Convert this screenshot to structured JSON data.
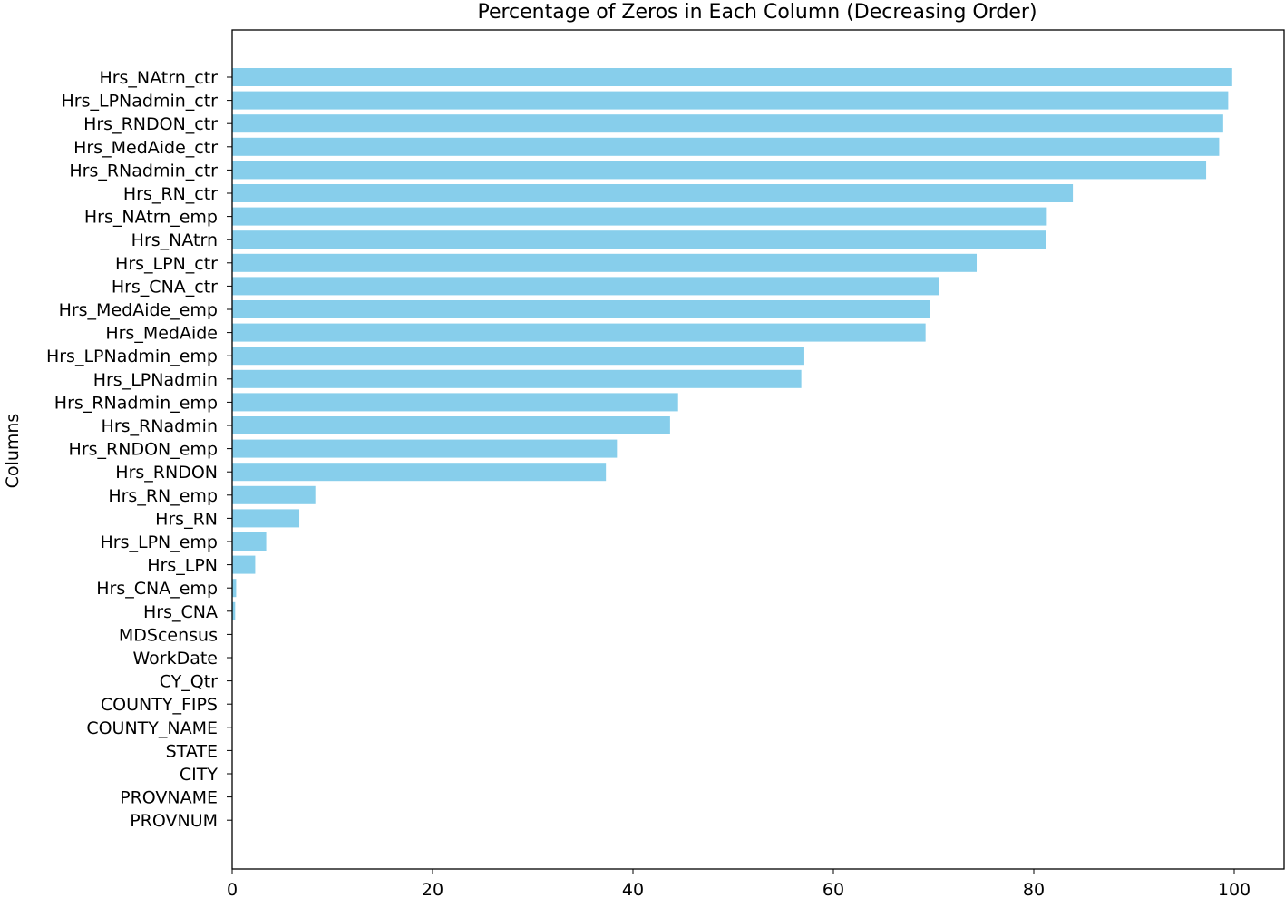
{
  "chart_data": {
    "type": "bar",
    "orientation": "horizontal",
    "title": "Percentage of Zeros in Each Column (Decreasing Order)",
    "xlabel": "",
    "ylabel": "Columns",
    "xlim": [
      0,
      105
    ],
    "xticks": [
      0,
      20,
      40,
      60,
      80,
      100
    ],
    "grid": false,
    "bar_color": "#87ceeb",
    "categories": [
      "Hrs_NAtrn_ctr",
      "Hrs_LPNadmin_ctr",
      "Hrs_RNDON_ctr",
      "Hrs_MedAide_ctr",
      "Hrs_RNadmin_ctr",
      "Hrs_RN_ctr",
      "Hrs_NAtrn_emp",
      "Hrs_NAtrn",
      "Hrs_LPN_ctr",
      "Hrs_CNA_ctr",
      "Hrs_MedAide_emp",
      "Hrs_MedAide",
      "Hrs_LPNadmin_emp",
      "Hrs_LPNadmin",
      "Hrs_RNadmin_emp",
      "Hrs_RNadmin",
      "Hrs_RNDON_emp",
      "Hrs_RNDON",
      "Hrs_RN_emp",
      "Hrs_RN",
      "Hrs_LPN_emp",
      "Hrs_LPN",
      "Hrs_CNA_emp",
      "Hrs_CNA",
      "MDScensus",
      "WorkDate",
      "CY_Qtr",
      "COUNTY_FIPS",
      "COUNTY_NAME",
      "STATE",
      "CITY",
      "PROVNAME",
      "PROVNUM"
    ],
    "values": [
      99.8,
      99.4,
      98.9,
      98.5,
      97.2,
      83.9,
      81.3,
      81.2,
      74.3,
      70.5,
      69.6,
      69.2,
      57.1,
      56.8,
      44.5,
      43.7,
      38.4,
      37.3,
      8.3,
      6.7,
      3.4,
      2.3,
      0.4,
      0.3,
      0,
      0,
      0,
      0,
      0,
      0,
      0,
      0,
      0
    ]
  }
}
